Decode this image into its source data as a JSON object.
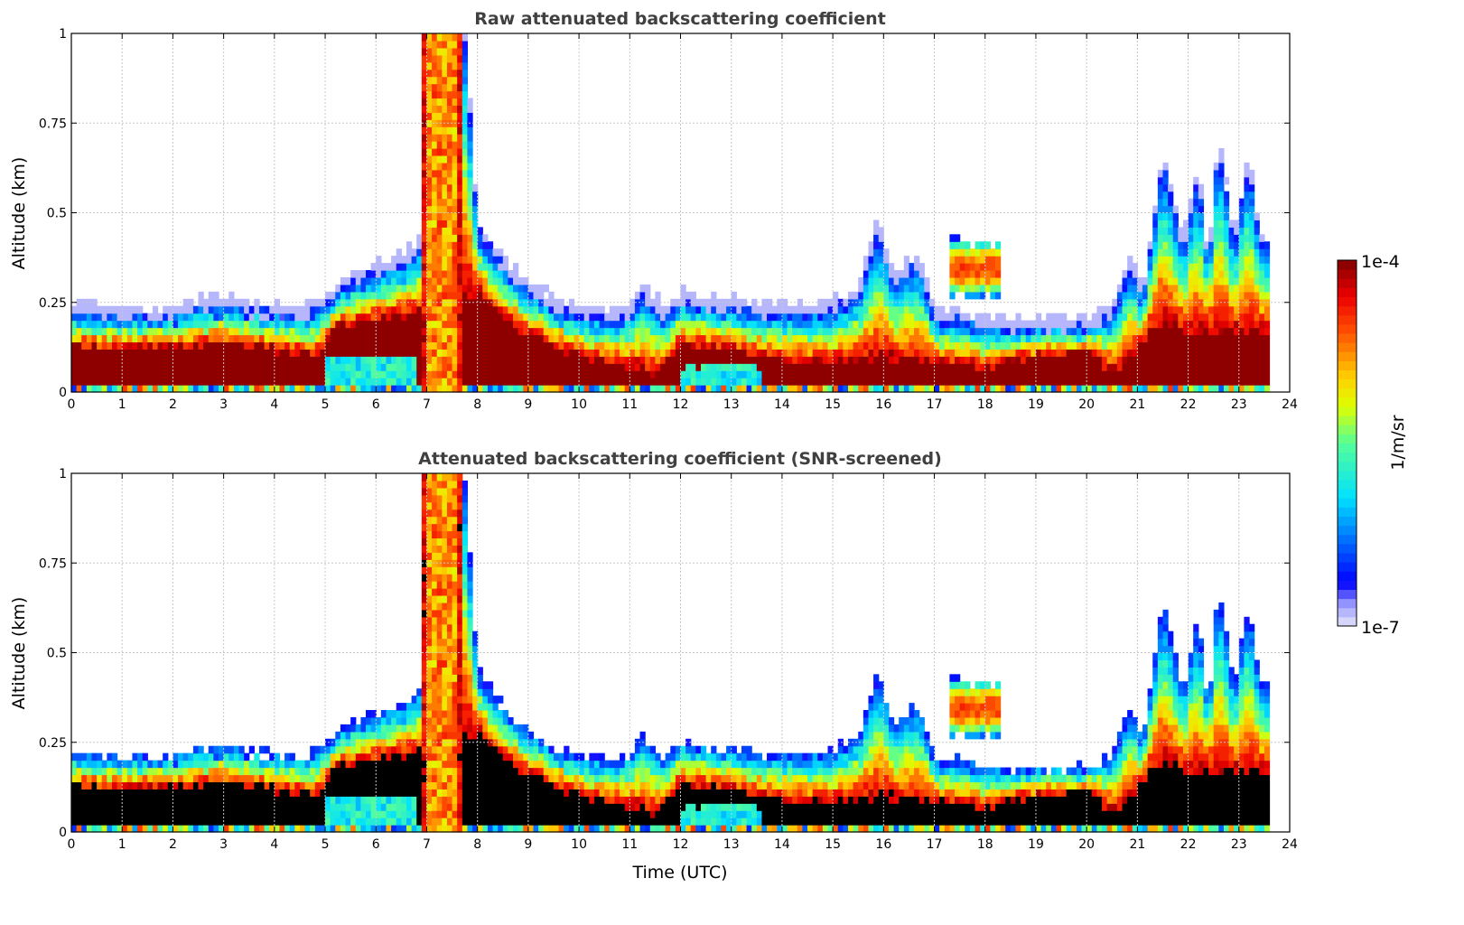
{
  "chart_data": [
    {
      "type": "heatmap",
      "title": "Raw attenuated backscattering coefficient",
      "xlabel": "",
      "ylabel": "Altitude (km)",
      "xlim": [
        0,
        24
      ],
      "ylim": [
        0,
        1
      ],
      "xticks": [
        "0",
        "1",
        "2",
        "3",
        "4",
        "5",
        "6",
        "7",
        "8",
        "9",
        "10",
        "11",
        "12",
        "13",
        "14",
        "15",
        "16",
        "17",
        "18",
        "19",
        "20",
        "21",
        "22",
        "23",
        "24"
      ],
      "yticks": [
        "0",
        "0.25",
        "0.5",
        "0.75",
        "1"
      ],
      "grid": true,
      "screened": false
    },
    {
      "type": "heatmap",
      "title": "Attenuated backscattering coefficient (SNR-screened)",
      "xlabel": "Time (UTC)",
      "ylabel": "Altitude (km)",
      "xlim": [
        0,
        24
      ],
      "ylim": [
        0,
        1
      ],
      "xticks": [
        "0",
        "1",
        "2",
        "3",
        "4",
        "5",
        "6",
        "7",
        "8",
        "9",
        "10",
        "11",
        "12",
        "13",
        "14",
        "15",
        "16",
        "17",
        "18",
        "19",
        "20",
        "21",
        "22",
        "23",
        "24"
      ],
      "yticks": [
        "0",
        "0.25",
        "0.5",
        "0.75",
        "1"
      ],
      "grid": true,
      "screened": true
    }
  ],
  "colorbar": {
    "label": "1/m/sr",
    "max_label": "1e-4",
    "min_label": "1e-7",
    "scale": "log",
    "range": [
      1e-07,
      0.0001
    ],
    "levels": 40,
    "colors": [
      "#e6e6fa",
      "#9999ff",
      "#0000ff",
      "#0060ff",
      "#00e0ff",
      "#55ff99",
      "#ddff00",
      "#ffd000",
      "#ff5500",
      "#ee0000",
      "#800000"
    ],
    "stops": [
      0,
      0.06,
      0.12,
      0.22,
      0.35,
      0.5,
      0.6,
      0.68,
      0.8,
      0.9,
      1.0
    ]
  },
  "backscatter_profile": {
    "data_end_hour": 23.62,
    "layer_top_km": [
      [
        0,
        0.22
      ],
      [
        0.5,
        0.21
      ],
      [
        1,
        0.21
      ],
      [
        1.5,
        0.21
      ],
      [
        2,
        0.21
      ],
      [
        2.5,
        0.23
      ],
      [
        3,
        0.24
      ],
      [
        3.5,
        0.22
      ],
      [
        4,
        0.22
      ],
      [
        4.5,
        0.2
      ],
      [
        5,
        0.25
      ],
      [
        5.5,
        0.3
      ],
      [
        6,
        0.33
      ],
      [
        6.5,
        0.35
      ],
      [
        6.85,
        0.4
      ],
      [
        6.9,
        1.0
      ],
      [
        7.75,
        1.0
      ],
      [
        8.0,
        0.45
      ],
      [
        8.5,
        0.35
      ],
      [
        9,
        0.28
      ],
      [
        9.5,
        0.24
      ],
      [
        10,
        0.21
      ],
      [
        10.5,
        0.2
      ],
      [
        11,
        0.22
      ],
      [
        11.25,
        0.28
      ],
      [
        11.7,
        0.2
      ],
      [
        12,
        0.26
      ],
      [
        12.5,
        0.24
      ],
      [
        13,
        0.23
      ],
      [
        13.5,
        0.22
      ],
      [
        14,
        0.22
      ],
      [
        14.5,
        0.22
      ],
      [
        15,
        0.23
      ],
      [
        15.5,
        0.27
      ],
      [
        15.9,
        0.45
      ],
      [
        16.2,
        0.3
      ],
      [
        16.7,
        0.36
      ],
      [
        17,
        0.2
      ],
      [
        17.5,
        0.2
      ],
      [
        18,
        0.18
      ],
      [
        18.5,
        0.18
      ],
      [
        19,
        0.18
      ],
      [
        19.5,
        0.18
      ],
      [
        20,
        0.18
      ],
      [
        20.5,
        0.22
      ],
      [
        20.9,
        0.35
      ],
      [
        21.1,
        0.25
      ],
      [
        21.5,
        0.65
      ],
      [
        21.9,
        0.4
      ],
      [
        22.2,
        0.6
      ],
      [
        22.4,
        0.35
      ],
      [
        22.6,
        0.7
      ],
      [
        22.9,
        0.4
      ],
      [
        23.2,
        0.65
      ],
      [
        23.4,
        0.42
      ],
      [
        23.62,
        0.4
      ]
    ],
    "core_top_km": [
      [
        0,
        0.13
      ],
      [
        1,
        0.12
      ],
      [
        2,
        0.12
      ],
      [
        3,
        0.14
      ],
      [
        4,
        0.12
      ],
      [
        4.9,
        0.1
      ],
      [
        5.2,
        0.18
      ],
      [
        6,
        0.2
      ],
      [
        6.85,
        0.22
      ],
      [
        8,
        0.28
      ],
      [
        8.5,
        0.2
      ],
      [
        9,
        0.16
      ],
      [
        10,
        0.1
      ],
      [
        11,
        0.07
      ],
      [
        11.5,
        0.05
      ],
      [
        12,
        0.13
      ],
      [
        13,
        0.12
      ],
      [
        14,
        0.09
      ],
      [
        15,
        0.08
      ],
      [
        16,
        0.1
      ],
      [
        17,
        0.08
      ],
      [
        18,
        0.07
      ],
      [
        19,
        0.1
      ],
      [
        20,
        0.12
      ],
      [
        20.5,
        0.05
      ],
      [
        21,
        0.12
      ],
      [
        21.5,
        0.2
      ],
      [
        22,
        0.16
      ],
      [
        23,
        0.17
      ],
      [
        23.62,
        0.16
      ]
    ],
    "fog": [
      {
        "from_hour": 6.9,
        "to_hour": 7.75,
        "value": 0.74
      }
    ],
    "low_zones": [
      {
        "from_hour": 5.0,
        "to_hour": 6.85,
        "top_km": 0.1,
        "value": 0.4
      },
      {
        "from_hour": 12.0,
        "to_hour": 13.6,
        "top_km": 0.07,
        "value": 0.4
      }
    ],
    "plumes": [
      {
        "from_hour": 17.3,
        "to_hour": 18.3,
        "bottom_km": 0.27,
        "top_km": 0.42,
        "value": 0.82
      }
    ]
  }
}
